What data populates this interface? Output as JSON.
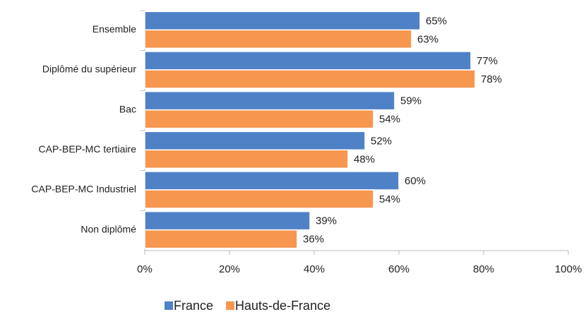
{
  "chart_data": {
    "type": "hbar",
    "categories": [
      "Ensemble",
      "Diplômé du supérieur",
      "Bac",
      "CAP-BEP-MC tertiaire",
      "CAP-BEP-MC Industriel",
      "Non diplômé"
    ],
    "series": [
      {
        "name": "France",
        "color": "#4f81c6",
        "values": [
          65,
          77,
          59,
          52,
          60,
          39
        ],
        "value_labels": [
          "65%",
          "77%",
          "59%",
          "52%",
          "60%",
          "39%"
        ]
      },
      {
        "name": "Hauts-de-France",
        "color": "#f7964f",
        "values": [
          63,
          78,
          54,
          48,
          54,
          36
        ],
        "value_labels": [
          "63%",
          "78%",
          "54%",
          "48%",
          "54%",
          "36%"
        ]
      }
    ],
    "xlim": [
      0,
      100
    ],
    "xticks": [
      {
        "value": 0,
        "label": "0%"
      },
      {
        "value": 20,
        "label": "20%"
      },
      {
        "value": 40,
        "label": "40%"
      },
      {
        "value": 60,
        "label": "60%"
      },
      {
        "value": 80,
        "label": "80%"
      },
      {
        "value": 100,
        "label": "100%"
      }
    ],
    "grid": false,
    "legend": "bottom"
  }
}
